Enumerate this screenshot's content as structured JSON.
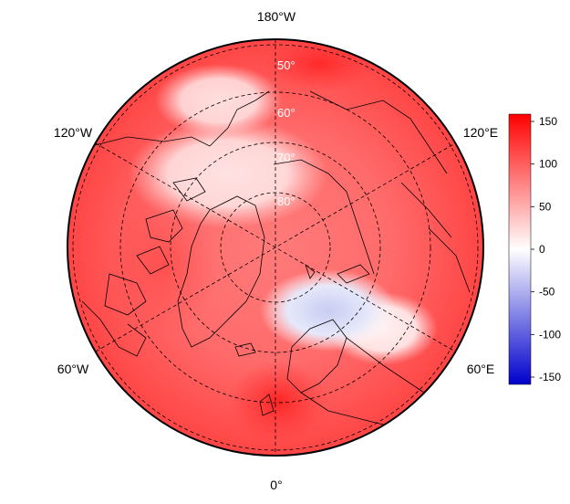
{
  "map": {
    "projection": "north polar stereographic",
    "longitude_labels": {
      "top": "180°W",
      "upper_left": "120°W",
      "upper_right": "120°E",
      "lower_left": "60°W",
      "lower_right": "60°E",
      "bottom": "0°"
    },
    "latitude_labels": [
      "50°",
      "60°",
      "70°",
      "80°"
    ],
    "colorbar": {
      "ticks": [
        "150",
        "100",
        "50",
        "0",
        "-50",
        "-100",
        "-150"
      ],
      "min": -150,
      "max": 150,
      "colors": {
        "low": "#0000cc",
        "mid": "#ffffff",
        "high": "#ff0000"
      }
    },
    "colors": {
      "background": "#ffffff",
      "positive_fill": "#ff4d4d",
      "negative_fill": "#d8dcf5",
      "coastline": "#000000",
      "graticule": "#000000"
    }
  }
}
